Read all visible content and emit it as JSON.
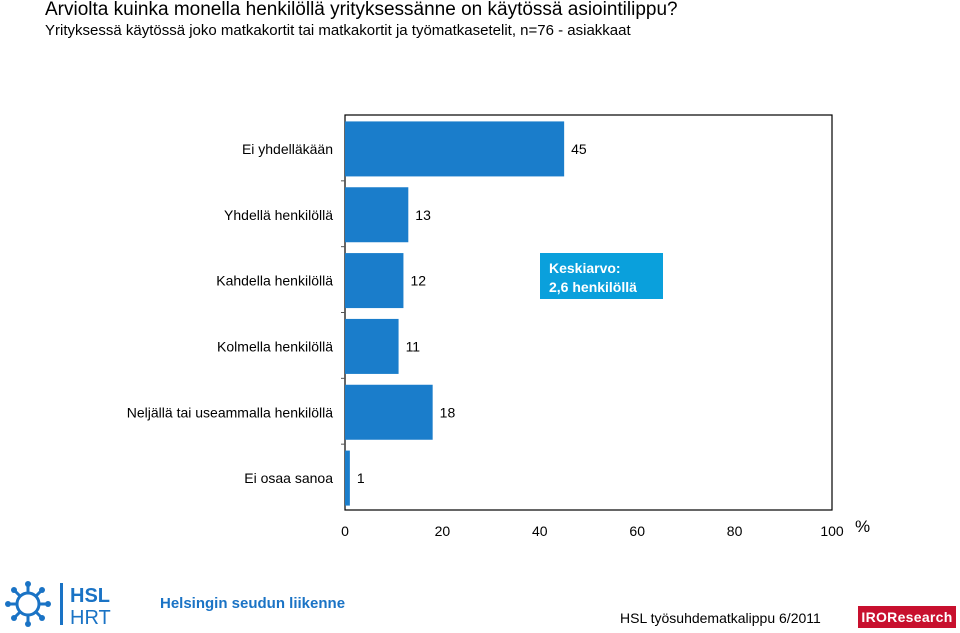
{
  "title": "Arviolta kuinka monella henkilöllä yrityksessänne on käytössä  asiointilippu?",
  "subtitle": "Yrityksessä käytössä joko matkakortit tai matkakortit ja työmatkasetelit, n=76 - asiakkaat",
  "chart_data": {
    "type": "bar",
    "orientation": "horizontal",
    "categories": [
      "Ei yhdelläkään",
      "Yhdellä henkilöllä",
      "Kahdella henkilöllä",
      "Kolmella henkilöllä",
      "Neljällä tai useammalla henkilöllä",
      "Ei osaa sanoa"
    ],
    "values": [
      45,
      13,
      12,
      11,
      18,
      1
    ],
    "xlim": [
      0,
      100
    ],
    "xticks": [
      "0",
      "20",
      "40",
      "60",
      "80",
      "100"
    ],
    "unit_label": "%",
    "bar_color": "#1a7dcb",
    "annotation": {
      "line1": "Keskiarvo:",
      "line2": "2,6 henkilöllä",
      "background": "#0aa0dc"
    }
  },
  "logos": {
    "hsl_line1": "HSL",
    "hsl_line2": "HRT",
    "hsl_text": "Helsingin seudun liikenne",
    "iro_text": "IROResearch"
  },
  "footer": "HSL työsuhdematkalippu  6/2011"
}
